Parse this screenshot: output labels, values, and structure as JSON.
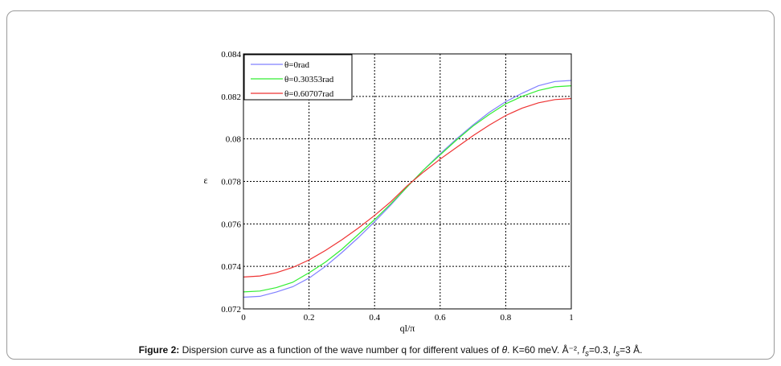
{
  "caption": {
    "label": "Figure 2:",
    "text": " Dispersion curve as a function of the wave number q for different values of ",
    "theta": "θ",
    "params": ".  K=60 meV. Å⁻², ",
    "f": "f",
    "f_sub": "s",
    "f_val": "=0.3, ",
    "l": "l",
    "l_sub": "s",
    "l_val": "=3 Å."
  },
  "chart_data": {
    "type": "line",
    "xlabel": "ql/π",
    "ylabel": "ε",
    "xlim": [
      0,
      1
    ],
    "ylim": [
      0.072,
      0.084
    ],
    "x_ticks": [
      "0",
      "0.2",
      "0.4",
      "0.6",
      "0.8",
      "1"
    ],
    "y_ticks": [
      "0.072",
      "0.074",
      "0.076",
      "0.078",
      "0.08",
      "0.082",
      "0.084"
    ],
    "grid": true,
    "legend_position": "top-left",
    "x": [
      0,
      0.05,
      0.1,
      0.15,
      0.2,
      0.25,
      0.3,
      0.35,
      0.4,
      0.45,
      0.5,
      0.55,
      0.6,
      0.65,
      0.7,
      0.75,
      0.8,
      0.85,
      0.9,
      0.95,
      1
    ],
    "series": [
      {
        "name": "θ=0rad",
        "color": "#8080ff",
        "values": [
          0.07255,
          0.07259,
          0.07279,
          0.07304,
          0.07345,
          0.074,
          0.07465,
          0.07535,
          0.0761,
          0.0769,
          0.07775,
          0.07855,
          0.0793,
          0.08,
          0.08065,
          0.08125,
          0.08175,
          0.08215,
          0.0825,
          0.0827,
          0.08275
        ]
      },
      {
        "name": "θ=0.30353rad",
        "color": "#33ee33",
        "values": [
          0.0728,
          0.07284,
          0.073,
          0.07325,
          0.0737,
          0.0742,
          0.0748,
          0.0755,
          0.0762,
          0.07695,
          0.07775,
          0.07855,
          0.07925,
          0.07995,
          0.0806,
          0.08115,
          0.08165,
          0.082,
          0.08228,
          0.08245,
          0.0825
        ]
      },
      {
        "name": "θ=0.60707rad",
        "color": "#ee3333",
        "values": [
          0.0735,
          0.07355,
          0.0737,
          0.07395,
          0.0743,
          0.07475,
          0.07525,
          0.0758,
          0.0764,
          0.07705,
          0.0778,
          0.07845,
          0.07905,
          0.0796,
          0.08015,
          0.08065,
          0.0811,
          0.08145,
          0.0817,
          0.08185,
          0.0819
        ]
      }
    ]
  }
}
